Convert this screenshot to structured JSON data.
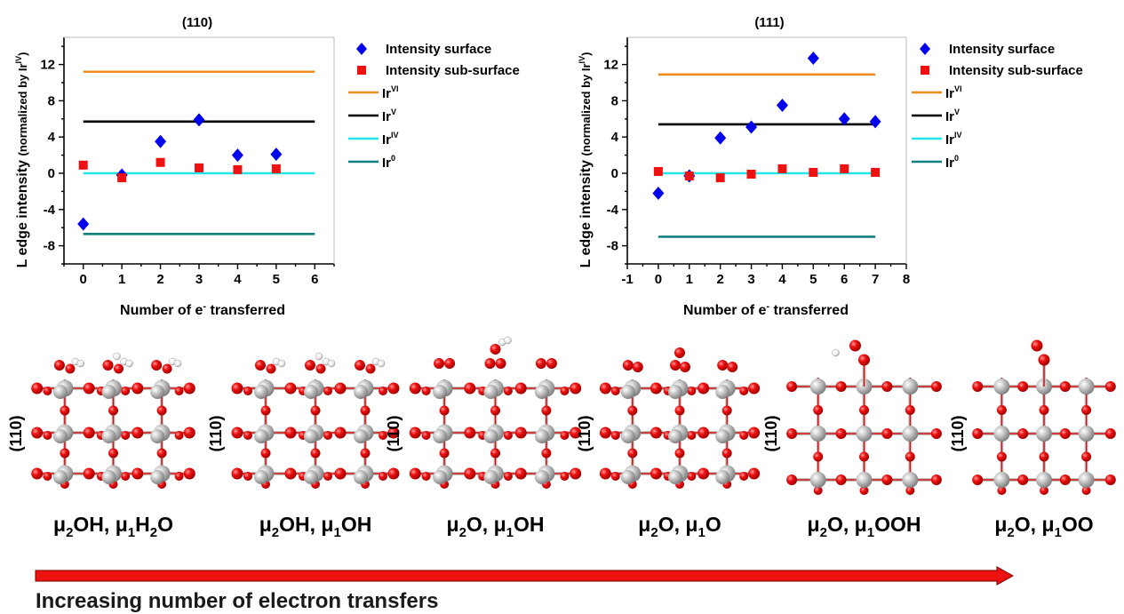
{
  "chart_data": [
    {
      "type": "scatter",
      "title": "(110)",
      "xlabel_main": "Number of e",
      "xlabel_sup": "-",
      "xlabel_rest": " transferred",
      "ylabel_main": "L edge intensity ",
      "ylabel_paren": "(normalized by Ir",
      "ylabel_sup": "IV",
      "ylabel_close": ")",
      "xlim": [
        -0.5,
        6.5
      ],
      "ylim": [
        -10,
        15
      ],
      "xticks": [
        0,
        1,
        2,
        3,
        4,
        5,
        6
      ],
      "yticks": [
        -8,
        -4,
        0,
        4,
        8,
        12
      ],
      "series": [
        {
          "name": "Intensity surface",
          "marker": "diamond",
          "color": "#0000ee",
          "x": [
            0,
            1,
            2,
            3,
            4,
            5
          ],
          "y": [
            -5.6,
            -0.2,
            3.5,
            5.9,
            2.0,
            2.1
          ]
        },
        {
          "name": "Intensity sub-surface",
          "marker": "square",
          "color": "#ee1111",
          "x": [
            0,
            1,
            2,
            3,
            4,
            5
          ],
          "y": [
            0.9,
            -0.5,
            1.2,
            0.6,
            0.4,
            0.5
          ]
        }
      ],
      "reference_lines": [
        {
          "base": "Ir",
          "sup": "VI",
          "y": 11.2,
          "color": "#f08c1e"
        },
        {
          "base": "Ir",
          "sup": "V",
          "y": 5.7,
          "color": "#000000"
        },
        {
          "base": "Ir",
          "sup": "IV",
          "y": 0.0,
          "color": "#22e6ee"
        },
        {
          "base": "Ir",
          "sup": "0",
          "y": -6.7,
          "color": "#108080"
        }
      ],
      "legend_position": "right"
    },
    {
      "type": "scatter",
      "title": "(111)",
      "xlabel_main": "Number of e",
      "xlabel_sup": "-",
      "xlabel_rest": " transferred",
      "ylabel_main": "L edge intensity ",
      "ylabel_paren": "(normalized by Ir",
      "ylabel_sup": "IV",
      "ylabel_close": ")",
      "xlim": [
        -1,
        8
      ],
      "ylim": [
        -10,
        15
      ],
      "xticks": [
        -1,
        0,
        1,
        2,
        3,
        4,
        5,
        6,
        7,
        8
      ],
      "yticks": [
        -8,
        -4,
        0,
        4,
        8,
        12
      ],
      "series": [
        {
          "name": "Intensity surface",
          "marker": "diamond",
          "color": "#0000ee",
          "x": [
            0,
            1,
            2,
            3,
            4,
            5,
            6,
            7
          ],
          "y": [
            -2.2,
            -0.3,
            3.9,
            5.1,
            7.5,
            12.7,
            6.0,
            5.7
          ]
        },
        {
          "name": "Intensity sub-surface",
          "marker": "square",
          "color": "#ee1111",
          "x": [
            0,
            1,
            2,
            3,
            4,
            5,
            6,
            7
          ],
          "y": [
            0.2,
            -0.3,
            -0.5,
            -0.1,
            0.5,
            0.1,
            0.5,
            0.1
          ]
        }
      ],
      "reference_lines": [
        {
          "base": "Ir",
          "sup": "VI",
          "y": 10.9,
          "color": "#f08c1e"
        },
        {
          "base": "Ir",
          "sup": "V",
          "y": 5.4,
          "color": "#000000"
        },
        {
          "base": "Ir",
          "sup": "IV",
          "y": 0.0,
          "color": "#22e6ee"
        },
        {
          "base": "Ir",
          "sup": "0",
          "y": -7.0,
          "color": "#108080"
        }
      ],
      "legend_position": "right"
    }
  ],
  "structures": [
    {
      "side_label": "(110)",
      "mu2": "OH",
      "mu1": "H",
      "mu1_sub": "2",
      "mu1_tail": "O",
      "adsorbate": "h2o"
    },
    {
      "side_label": "(110)",
      "mu2": "OH",
      "mu1": "OH",
      "mu1_sub": "",
      "mu1_tail": "",
      "adsorbate": "oh"
    },
    {
      "side_label": "(110)",
      "mu2": "O",
      "mu1": "OH",
      "mu1_sub": "",
      "mu1_tail": "",
      "adsorbate": "oh_top"
    },
    {
      "side_label": "(110)",
      "mu2": "O",
      "mu1": "O",
      "mu1_sub": "",
      "mu1_tail": "",
      "adsorbate": "o"
    },
    {
      "side_label": "(110)",
      "mu2": "O",
      "mu1": "OOH",
      "mu1_sub": "",
      "mu1_tail": "",
      "adsorbate": "ooh"
    },
    {
      "side_label": "(110)",
      "mu2": "O",
      "mu1": "OO",
      "mu1_sub": "",
      "mu1_tail": "",
      "adsorbate": "oo"
    }
  ],
  "mu_symbol": "μ",
  "mu2_sub": "2",
  "mu1_sub_index": "1",
  "arrow": {
    "label": "Increasing number of electron transfers",
    "color": "#ee1111"
  },
  "atom_colors": {
    "ir": "#b8b8b8",
    "o": "#e60000",
    "h": "#f2f2f2"
  }
}
